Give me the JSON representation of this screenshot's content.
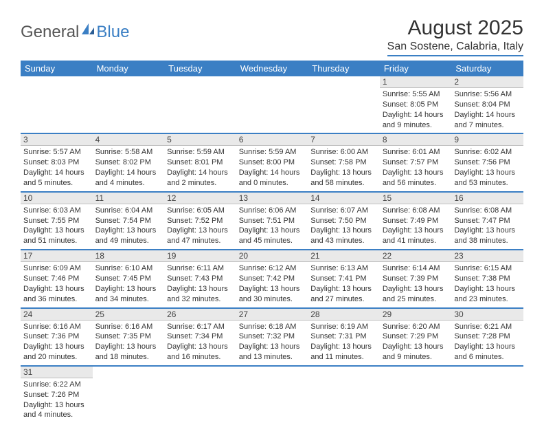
{
  "logo": {
    "text1": "General",
    "text2": "Blue"
  },
  "header": {
    "title": "August 2025",
    "subtitle": "San Sostene, Calabria, Italy"
  },
  "colors": {
    "accent": "#3b7fc4",
    "header_text": "#ffffff",
    "daynum_bg": "#e9e9e9",
    "text": "#333333"
  },
  "weekdays": [
    "Sunday",
    "Monday",
    "Tuesday",
    "Wednesday",
    "Thursday",
    "Friday",
    "Saturday"
  ],
  "cells": [
    [
      null,
      null,
      null,
      null,
      null,
      {
        "day": "1",
        "sunrise": "5:55 AM",
        "sunset": "8:05 PM",
        "daylight": "14 hours and 9 minutes."
      },
      {
        "day": "2",
        "sunrise": "5:56 AM",
        "sunset": "8:04 PM",
        "daylight": "14 hours and 7 minutes."
      }
    ],
    [
      {
        "day": "3",
        "sunrise": "5:57 AM",
        "sunset": "8:03 PM",
        "daylight": "14 hours and 5 minutes."
      },
      {
        "day": "4",
        "sunrise": "5:58 AM",
        "sunset": "8:02 PM",
        "daylight": "14 hours and 4 minutes."
      },
      {
        "day": "5",
        "sunrise": "5:59 AM",
        "sunset": "8:01 PM",
        "daylight": "14 hours and 2 minutes."
      },
      {
        "day": "6",
        "sunrise": "5:59 AM",
        "sunset": "8:00 PM",
        "daylight": "14 hours and 0 minutes."
      },
      {
        "day": "7",
        "sunrise": "6:00 AM",
        "sunset": "7:58 PM",
        "daylight": "13 hours and 58 minutes."
      },
      {
        "day": "8",
        "sunrise": "6:01 AM",
        "sunset": "7:57 PM",
        "daylight": "13 hours and 56 minutes."
      },
      {
        "day": "9",
        "sunrise": "6:02 AM",
        "sunset": "7:56 PM",
        "daylight": "13 hours and 53 minutes."
      }
    ],
    [
      {
        "day": "10",
        "sunrise": "6:03 AM",
        "sunset": "7:55 PM",
        "daylight": "13 hours and 51 minutes."
      },
      {
        "day": "11",
        "sunrise": "6:04 AM",
        "sunset": "7:54 PM",
        "daylight": "13 hours and 49 minutes."
      },
      {
        "day": "12",
        "sunrise": "6:05 AM",
        "sunset": "7:52 PM",
        "daylight": "13 hours and 47 minutes."
      },
      {
        "day": "13",
        "sunrise": "6:06 AM",
        "sunset": "7:51 PM",
        "daylight": "13 hours and 45 minutes."
      },
      {
        "day": "14",
        "sunrise": "6:07 AM",
        "sunset": "7:50 PM",
        "daylight": "13 hours and 43 minutes."
      },
      {
        "day": "15",
        "sunrise": "6:08 AM",
        "sunset": "7:49 PM",
        "daylight": "13 hours and 41 minutes."
      },
      {
        "day": "16",
        "sunrise": "6:08 AM",
        "sunset": "7:47 PM",
        "daylight": "13 hours and 38 minutes."
      }
    ],
    [
      {
        "day": "17",
        "sunrise": "6:09 AM",
        "sunset": "7:46 PM",
        "daylight": "13 hours and 36 minutes."
      },
      {
        "day": "18",
        "sunrise": "6:10 AM",
        "sunset": "7:45 PM",
        "daylight": "13 hours and 34 minutes."
      },
      {
        "day": "19",
        "sunrise": "6:11 AM",
        "sunset": "7:43 PM",
        "daylight": "13 hours and 32 minutes."
      },
      {
        "day": "20",
        "sunrise": "6:12 AM",
        "sunset": "7:42 PM",
        "daylight": "13 hours and 30 minutes."
      },
      {
        "day": "21",
        "sunrise": "6:13 AM",
        "sunset": "7:41 PM",
        "daylight": "13 hours and 27 minutes."
      },
      {
        "day": "22",
        "sunrise": "6:14 AM",
        "sunset": "7:39 PM",
        "daylight": "13 hours and 25 minutes."
      },
      {
        "day": "23",
        "sunrise": "6:15 AM",
        "sunset": "7:38 PM",
        "daylight": "13 hours and 23 minutes."
      }
    ],
    [
      {
        "day": "24",
        "sunrise": "6:16 AM",
        "sunset": "7:36 PM",
        "daylight": "13 hours and 20 minutes."
      },
      {
        "day": "25",
        "sunrise": "6:16 AM",
        "sunset": "7:35 PM",
        "daylight": "13 hours and 18 minutes."
      },
      {
        "day": "26",
        "sunrise": "6:17 AM",
        "sunset": "7:34 PM",
        "daylight": "13 hours and 16 minutes."
      },
      {
        "day": "27",
        "sunrise": "6:18 AM",
        "sunset": "7:32 PM",
        "daylight": "13 hours and 13 minutes."
      },
      {
        "day": "28",
        "sunrise": "6:19 AM",
        "sunset": "7:31 PM",
        "daylight": "13 hours and 11 minutes."
      },
      {
        "day": "29",
        "sunrise": "6:20 AM",
        "sunset": "7:29 PM",
        "daylight": "13 hours and 9 minutes."
      },
      {
        "day": "30",
        "sunrise": "6:21 AM",
        "sunset": "7:28 PM",
        "daylight": "13 hours and 6 minutes."
      }
    ],
    [
      {
        "day": "31",
        "sunrise": "6:22 AM",
        "sunset": "7:26 PM",
        "daylight": "13 hours and 4 minutes."
      },
      null,
      null,
      null,
      null,
      null,
      null
    ]
  ],
  "labels": {
    "sunrise": "Sunrise: ",
    "sunset": "Sunset: ",
    "daylight": "Daylight: "
  }
}
